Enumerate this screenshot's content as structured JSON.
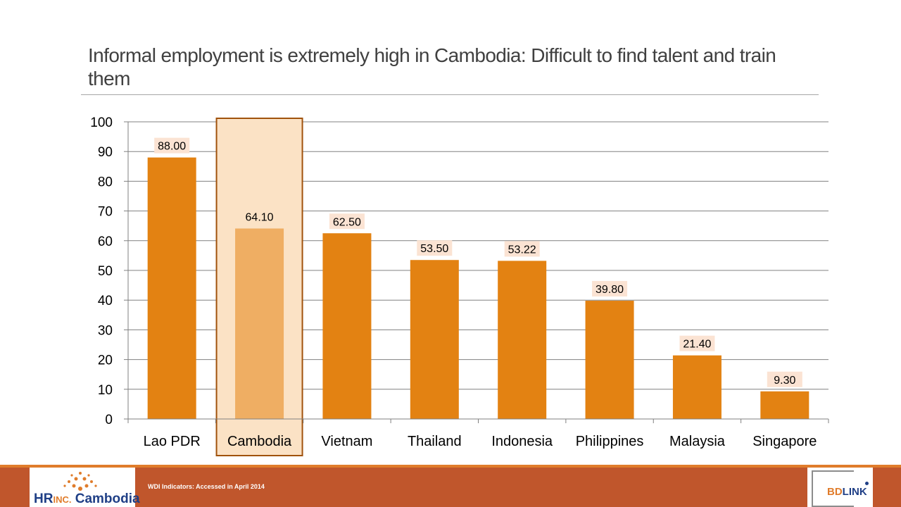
{
  "slide": {
    "title": "Informal employment is extremely high in Cambodia:  Difficult to find talent and train them"
  },
  "chart_data": {
    "type": "bar",
    "title": "",
    "xlabel": "",
    "ylabel": "",
    "categories": [
      "Lao PDR",
      "Cambodia",
      "Vietnam",
      "Thailand",
      "Indonesia",
      "Philippines",
      "Malaysia",
      "Singapore"
    ],
    "values": [
      88.0,
      64.1,
      62.5,
      53.5,
      53.22,
      39.8,
      21.4,
      9.3
    ],
    "data_labels": [
      "88.00",
      "64.10",
      "62.50",
      "53.50",
      "53.22",
      "39.80",
      "21.40",
      "9.30"
    ],
    "ylim": [
      0,
      100
    ],
    "yticks": [
      "0",
      "10",
      "20",
      "30",
      "40",
      "50",
      "60",
      "70",
      "80",
      "90",
      "100"
    ],
    "highlight_category": "Cambodia",
    "grid": true,
    "legend": "none",
    "colors": {
      "bar": "#e38212",
      "highlight_bar": "#efae63",
      "highlight_band": "#fbe2c5",
      "highlight_border": "#a0520c",
      "highlight_text": "#b07a4b",
      "data_label_bg": "#fbe3d3",
      "grid": "#808080"
    }
  },
  "footer": {
    "source": "WDI Indicators: Accessed in April 2014",
    "logo_left_main": "HR",
    "logo_left_inc": "INC.",
    "logo_left_place": " Cambodia",
    "logo_right_a": "BD",
    "logo_right_b": "LINK"
  }
}
